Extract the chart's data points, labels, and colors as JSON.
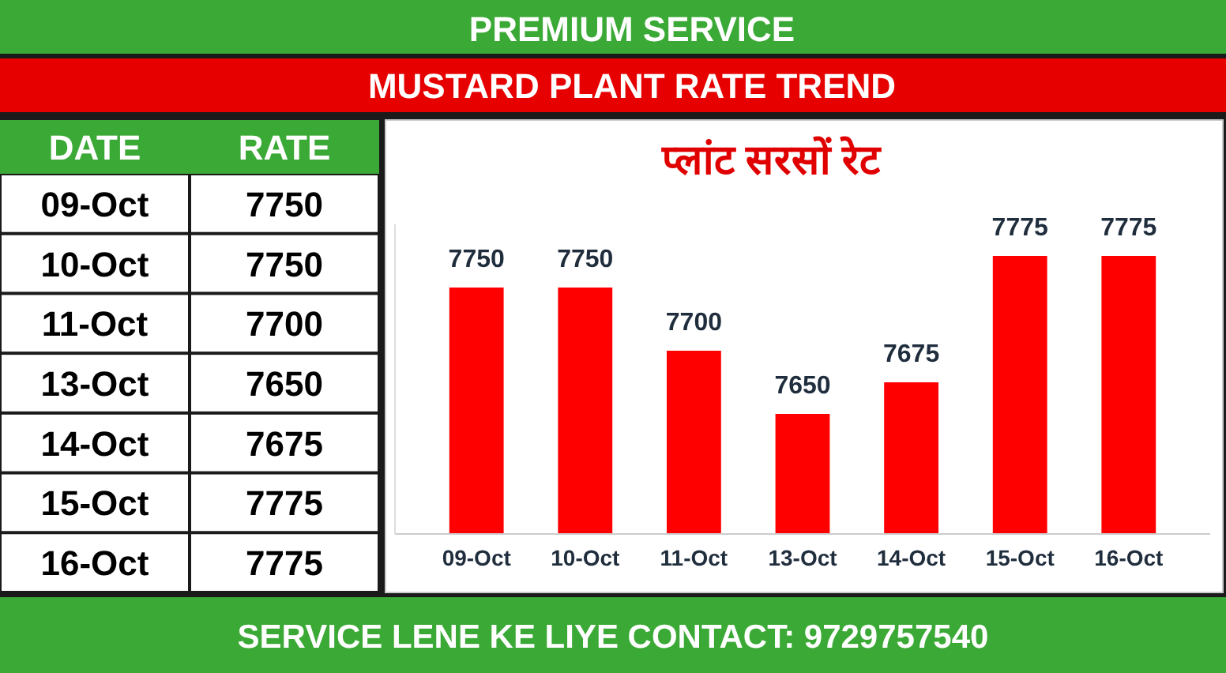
{
  "chart_data": {
    "type": "bar",
    "title": "MUSTARD PLANT RATE TREND",
    "subtitle": "प्लांट सरसों रेट",
    "categories": [
      "09-Oct",
      "10-Oct",
      "11-Oct",
      "13-Oct",
      "14-Oct",
      "15-Oct",
      "16-Oct"
    ],
    "values": [
      7750,
      7750,
      7700,
      7650,
      7675,
      7775,
      7775
    ],
    "value_labels": [
      "7750",
      "7750",
      "7700",
      "7650",
      "7675",
      "7775",
      "7775"
    ],
    "color": "#ff0000",
    "ylim": [
      7555,
      7800
    ],
    "tick_labels": "x",
    "grid": false,
    "annotations": [
      "PREMIUM SERVICE",
      "DATE",
      "RATE",
      "SERVICE LENE KE LIYE CONTACT: 9729757540"
    ]
  }
}
